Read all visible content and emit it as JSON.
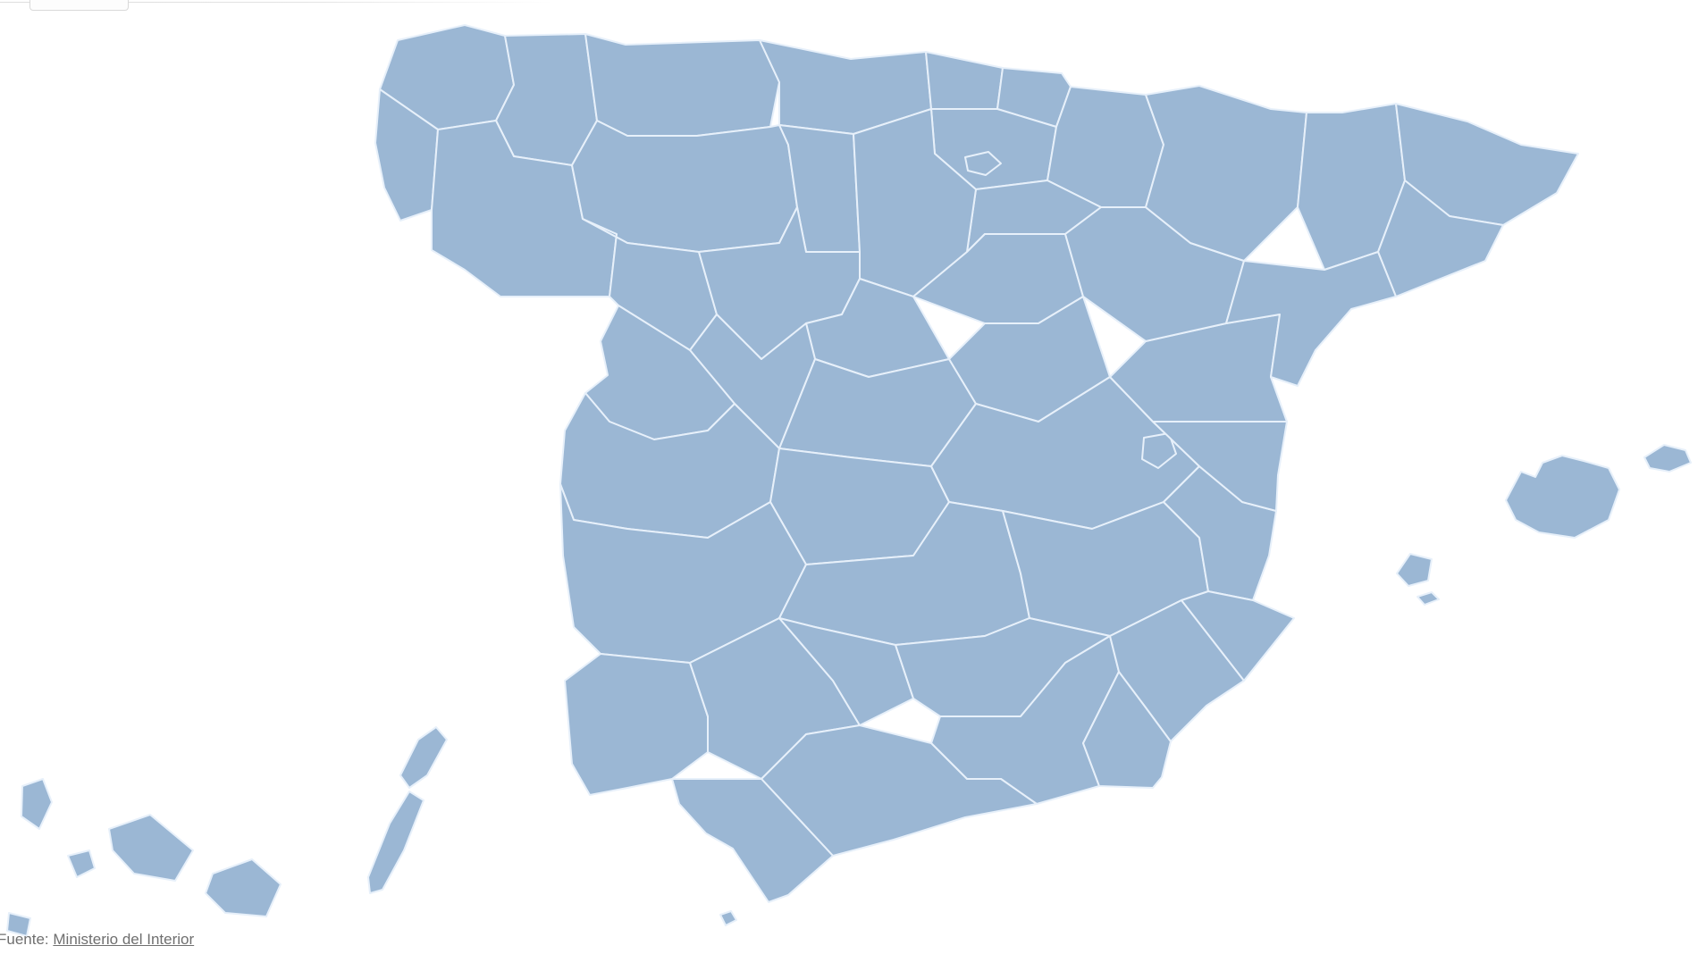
{
  "source_line": {
    "prefix": "Fuente: ",
    "link_text": "Ministerio del Interior"
  },
  "map": {
    "background": "#ffffff",
    "border_color": "#e7f0fa",
    "palette": {
      "cream": "#f6f8d0",
      "mint": "#5cd1b4",
      "teal": "#2fc9b3",
      "cyan": "#00a9c6",
      "light": "#1e93c8",
      "medium": "#0e6db5",
      "royal": "#0d4da6",
      "navy": "#0a2e7e"
    },
    "provinces": [
      {
        "id": "a-coruna",
        "name": "A Coruña",
        "tone": "royal"
      },
      {
        "id": "lugo",
        "name": "Lugo",
        "tone": "royal"
      },
      {
        "id": "pontevedra",
        "name": "Pontevedra",
        "tone": "royal"
      },
      {
        "id": "ourense",
        "name": "Ourense",
        "tone": "navy"
      },
      {
        "id": "asturias",
        "name": "Asturias",
        "tone": "royal"
      },
      {
        "id": "cantabria",
        "name": "Cantabria",
        "tone": "medium"
      },
      {
        "id": "vizcaya",
        "name": "Bizkaia",
        "tone": "cyan"
      },
      {
        "id": "guipuzcoa",
        "name": "Gipuzkoa",
        "tone": "medium"
      },
      {
        "id": "alava",
        "name": "Álava",
        "tone": "cream"
      },
      {
        "id": "trevino",
        "name": "Treviño (Burgos)",
        "tone": "navy"
      },
      {
        "id": "navarra",
        "name": "Navarra",
        "tone": "medium"
      },
      {
        "id": "la-rioja",
        "name": "La Rioja",
        "tone": "cyan"
      },
      {
        "id": "leon",
        "name": "León",
        "tone": "cyan"
      },
      {
        "id": "palencia",
        "name": "Palencia",
        "tone": "navy"
      },
      {
        "id": "burgos",
        "name": "Burgos",
        "tone": "navy"
      },
      {
        "id": "zamora",
        "name": "Zamora",
        "tone": "medium"
      },
      {
        "id": "valladolid",
        "name": "Valladolid",
        "tone": "royal"
      },
      {
        "id": "soria",
        "name": "Soria",
        "tone": "royal"
      },
      {
        "id": "segovia",
        "name": "Segovia",
        "tone": "medium"
      },
      {
        "id": "avila",
        "name": "Ávila",
        "tone": "royal"
      },
      {
        "id": "salamanca",
        "name": "Salamanca",
        "tone": "royal"
      },
      {
        "id": "madrid",
        "name": "Madrid",
        "tone": "light"
      },
      {
        "id": "guadalajara",
        "name": "Guadalajara",
        "tone": "medium"
      },
      {
        "id": "caceres",
        "name": "Cáceres",
        "tone": "navy"
      },
      {
        "id": "toledo",
        "name": "Toledo",
        "tone": "royal"
      },
      {
        "id": "cuenca",
        "name": "Cuenca",
        "tone": "royal"
      },
      {
        "id": "badajoz",
        "name": "Badajoz",
        "tone": "navy"
      },
      {
        "id": "ciudad-real",
        "name": "Ciudad Real",
        "tone": "royal"
      },
      {
        "id": "albacete",
        "name": "Albacete",
        "tone": "royal"
      },
      {
        "id": "valencia",
        "name": "València",
        "tone": "mint"
      },
      {
        "id": "valencia-exclave",
        "name": "Rincón de Ademuz (València)",
        "tone": "mint"
      },
      {
        "id": "castellon",
        "name": "Castelló",
        "tone": "light"
      },
      {
        "id": "teruel",
        "name": "Teruel",
        "tone": "light"
      },
      {
        "id": "zaragoza",
        "name": "Zaragoza",
        "tone": "medium"
      },
      {
        "id": "huesca",
        "name": "Huesca",
        "tone": "royal"
      },
      {
        "id": "lleida",
        "name": "Lleida",
        "tone": "medium"
      },
      {
        "id": "girona",
        "name": "Girona",
        "tone": "medium"
      },
      {
        "id": "barcelona",
        "name": "Barcelona",
        "tone": "medium"
      },
      {
        "id": "tarragona",
        "name": "Tarragona",
        "tone": "light"
      },
      {
        "id": "huelva",
        "name": "Huelva",
        "tone": "teal"
      },
      {
        "id": "sevilla",
        "name": "Sevilla",
        "tone": "light"
      },
      {
        "id": "cordoba",
        "name": "Córdoba",
        "tone": "cyan"
      },
      {
        "id": "jaen",
        "name": "Jaén",
        "tone": "mint"
      },
      {
        "id": "granada",
        "name": "Granada",
        "tone": "royal"
      },
      {
        "id": "almeria",
        "name": "Almería",
        "tone": "light"
      },
      {
        "id": "murcia",
        "name": "Murcia",
        "tone": "medium"
      },
      {
        "id": "alicante",
        "name": "Alacant",
        "tone": "medium"
      },
      {
        "id": "malaga",
        "name": "Málaga",
        "tone": "medium"
      },
      {
        "id": "cadiz",
        "name": "Cádiz",
        "tone": "medium"
      },
      {
        "id": "ceuta",
        "name": "Ceuta",
        "tone": "royal"
      },
      {
        "id": "mallorca",
        "name": "Mallorca",
        "tone": "navy"
      },
      {
        "id": "menorca",
        "name": "Menorca",
        "tone": "navy"
      },
      {
        "id": "ibiza",
        "name": "Eivissa",
        "tone": "navy"
      },
      {
        "id": "formentera",
        "name": "Formentera",
        "tone": "navy"
      },
      {
        "id": "la-palma",
        "name": "La Palma",
        "tone": "navy"
      },
      {
        "id": "el-hierro",
        "name": "El Hierro",
        "tone": "navy"
      },
      {
        "id": "la-gomera",
        "name": "La Gomera",
        "tone": "navy"
      },
      {
        "id": "tenerife",
        "name": "Tenerife",
        "tone": "navy"
      },
      {
        "id": "gran-canaria",
        "name": "Gran Canaria",
        "tone": "navy"
      },
      {
        "id": "lanzarote",
        "name": "Lanzarote",
        "tone": "navy"
      },
      {
        "id": "fuerteventura",
        "name": "Fuerteventura",
        "tone": "navy"
      }
    ]
  }
}
